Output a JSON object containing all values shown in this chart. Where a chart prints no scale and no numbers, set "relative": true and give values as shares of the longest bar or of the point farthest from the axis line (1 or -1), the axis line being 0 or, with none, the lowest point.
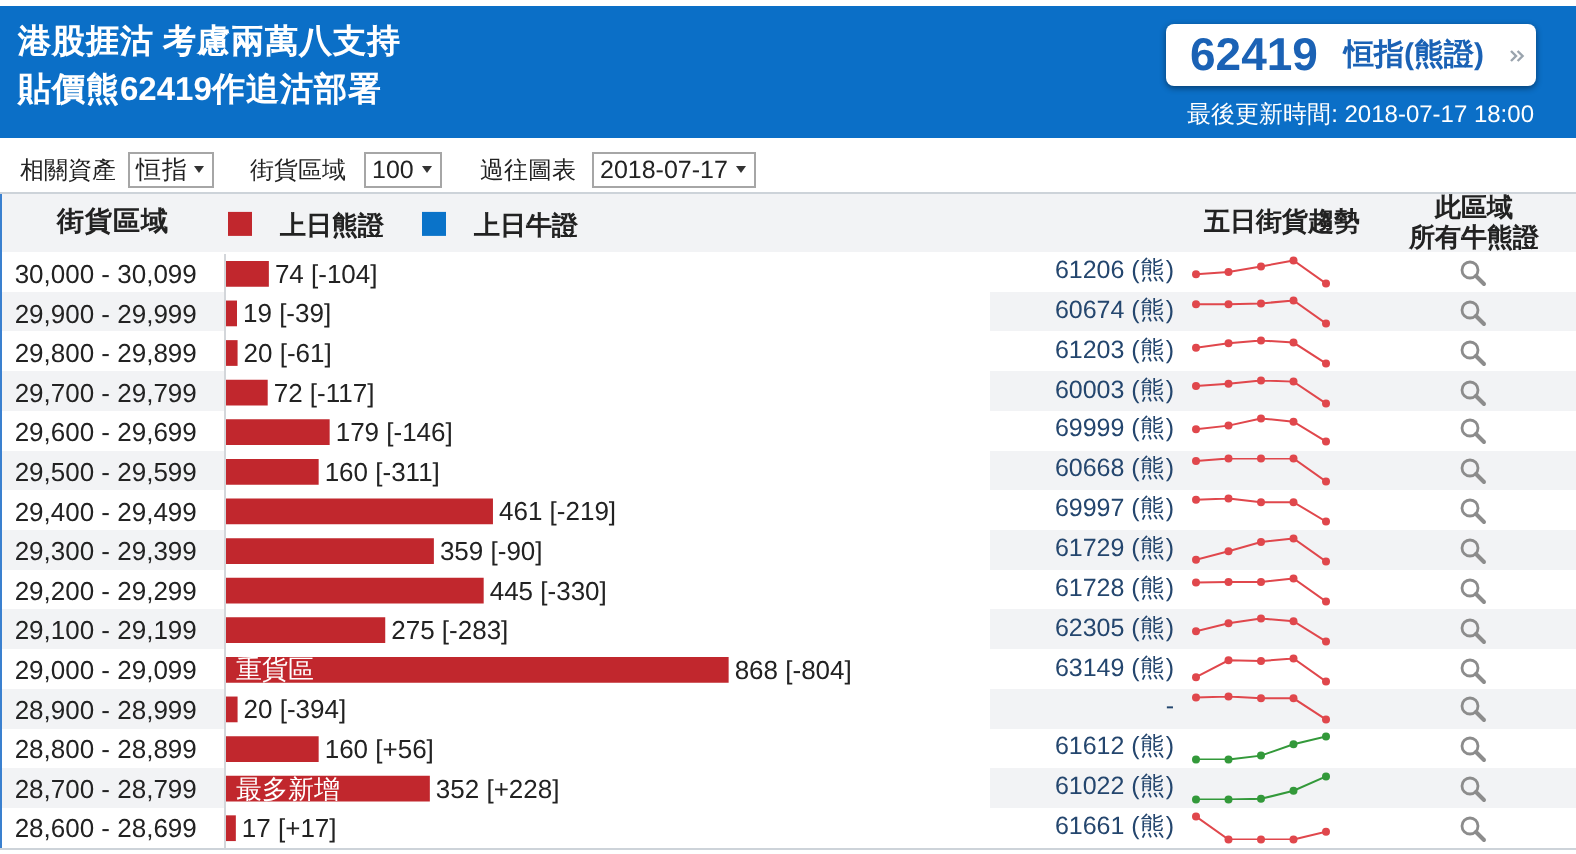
{
  "chart_data": [
    {
      "type": "bar",
      "orientation": "horizontal",
      "title": "港股捱沽 考慮兩萬八支持",
      "subtitle": "貼價熊62419作追沽部署",
      "ylabel": "街貨區域",
      "categories": [
        "30,000 - 30,099",
        "29,900 - 29,999",
        "29,800 - 29,899",
        "29,700 - 29,799",
        "29,600 - 29,699",
        "29,500 - 29,599",
        "29,400 - 29,499",
        "29,300 - 29,399",
        "29,200 - 29,299",
        "29,100 - 29,199",
        "29,000 - 29,099",
        "28,900 - 28,999",
        "28,800 - 28,899",
        "28,700 - 28,799",
        "28,600 - 28,699"
      ],
      "series": [
        {
          "name": "上日熊證",
          "color": "#c1272d",
          "values": [
            74,
            19,
            20,
            72,
            179,
            160,
            461,
            359,
            445,
            275,
            868,
            20,
            160,
            352,
            17
          ],
          "value_labels": [
            "74 [-104]",
            "19 [-39]",
            "20 [-61]",
            "72 [-117]",
            "179 [-146]",
            "160 [-311]",
            "461 [-219]",
            "359 [-90]",
            "445 [-330]",
            "275 [-283]",
            "868 [-804]",
            "20 [-394]",
            "160 [+56]",
            "352 [+228]",
            "17 [+17]"
          ]
        },
        {
          "name": "上日牛證",
          "color": "#0a73c9",
          "values": [
            null,
            null,
            null,
            null,
            null,
            null,
            null,
            null,
            null,
            null,
            null,
            null,
            null,
            null,
            null
          ]
        }
      ],
      "legend": "top left",
      "tick_labels": "y",
      "annotations": [
        {
          "text": "重貨區",
          "x": 0,
          "y": "29,000 - 29,099"
        },
        {
          "text": "最多新增",
          "x": 0,
          "y": "28,700 - 28,799"
        },
        "62419",
        "恒指(熊證)",
        "最後更新時間: 2018-07-17 18:00",
        "相關資產",
        "恒指",
        "街貨區域",
        "100",
        "過往圖表",
        "2018-07-17",
        "五日街貨趨勢",
        "此區域",
        "所有牛熊證"
      ]
    },
    {
      "type": "other",
      "annotations": [
        "61206 (熊)",
        "60674 (熊)",
        "61203 (熊)",
        "60003 (熊)",
        "69999 (熊)",
        "60668 (熊)",
        "69997 (熊)",
        "61729 (熊)",
        "61728 (熊)",
        "62305 (熊)",
        "63149 (熊)",
        "-",
        "61612 (熊)",
        "61022 (熊)",
        "61661 (熊)"
      ]
    },
    {
      "type": "line",
      "relative": true,
      "categories": [
        null,
        null,
        null,
        null,
        null
      ],
      "marker": "circle",
      "series": [
        {
          "color": "#e0474c",
          "values": [
            0.4,
            0.5,
            0.74,
            1,
            0
          ]
        }
      ]
    },
    {
      "type": "line",
      "relative": true,
      "categories": [
        null,
        null,
        null,
        null,
        null
      ],
      "marker": "circle",
      "series": [
        {
          "color": "#e0474c",
          "values": [
            0.84,
            0.84,
            0.87,
            1,
            0
          ]
        }
      ]
    },
    {
      "type": "line",
      "relative": true,
      "categories": [
        null,
        null,
        null,
        null,
        null
      ],
      "marker": "circle",
      "series": [
        {
          "color": "#e0474c",
          "values": [
            0.68,
            0.88,
            1,
            0.91,
            0
          ]
        }
      ]
    },
    {
      "type": "line",
      "relative": true,
      "categories": [
        null,
        null,
        null,
        null,
        null
      ],
      "marker": "circle",
      "series": [
        {
          "color": "#e0474c",
          "values": [
            0.76,
            0.86,
            1,
            0.95,
            0
          ]
        }
      ]
    },
    {
      "type": "line",
      "relative": true,
      "categories": [
        null,
        null,
        null,
        null,
        null
      ],
      "marker": "circle",
      "series": [
        {
          "color": "#e0474c",
          "values": [
            0.53,
            0.69,
            1,
            0.86,
            0
          ]
        }
      ]
    },
    {
      "type": "line",
      "relative": true,
      "categories": [
        null,
        null,
        null,
        null,
        null
      ],
      "marker": "circle",
      "series": [
        {
          "color": "#e0474c",
          "values": [
            0.89,
            1,
            1,
            1,
            0
          ]
        }
      ]
    },
    {
      "type": "line",
      "relative": true,
      "categories": [
        null,
        null,
        null,
        null,
        null
      ],
      "marker": "circle",
      "series": [
        {
          "color": "#e0474c",
          "values": [
            0.94,
            1,
            0.84,
            0.84,
            0
          ]
        }
      ]
    },
    {
      "type": "line",
      "relative": true,
      "categories": [
        null,
        null,
        null,
        null,
        null
      ],
      "marker": "circle",
      "series": [
        {
          "color": "#e0474c",
          "values": [
            0.08,
            0.45,
            0.85,
            1,
            0
          ]
        }
      ]
    },
    {
      "type": "line",
      "relative": true,
      "categories": [
        null,
        null,
        null,
        null,
        null
      ],
      "marker": "circle",
      "series": [
        {
          "color": "#e0474c",
          "values": [
            0.82,
            0.85,
            0.85,
            1,
            0
          ]
        }
      ]
    },
    {
      "type": "line",
      "relative": true,
      "categories": [
        null,
        null,
        null,
        null,
        null
      ],
      "marker": "circle",
      "series": [
        {
          "color": "#e0474c",
          "values": [
            0.45,
            0.79,
            1,
            0.88,
            0
          ]
        }
      ]
    },
    {
      "type": "line",
      "relative": true,
      "categories": [
        null,
        null,
        null,
        null,
        null
      ],
      "marker": "circle",
      "series": [
        {
          "color": "#e0474c",
          "values": [
            0.19,
            0.92,
            0.89,
            1,
            0
          ]
        }
      ]
    },
    {
      "type": "line",
      "relative": true,
      "categories": [
        null,
        null,
        null,
        null,
        null
      ],
      "marker": "circle",
      "series": [
        {
          "color": "#e0474c",
          "values": [
            0.95,
            1,
            0.92,
            0.92,
            0
          ]
        }
      ]
    },
    {
      "type": "line",
      "relative": true,
      "categories": [
        null,
        null,
        null,
        null,
        null
      ],
      "marker": "circle",
      "series": [
        {
          "color": "#33993a",
          "values": [
            0,
            0,
            0.17,
            0.66,
            1
          ]
        }
      ]
    },
    {
      "type": "line",
      "relative": true,
      "categories": [
        null,
        null,
        null,
        null,
        null
      ],
      "marker": "circle",
      "series": [
        {
          "color": "#33993a",
          "values": [
            0,
            0,
            0.03,
            0.38,
            1
          ]
        }
      ]
    },
    {
      "type": "line",
      "relative": true,
      "categories": [
        null,
        null,
        null,
        null,
        null
      ],
      "marker": "circle",
      "series": [
        {
          "color": "#e0474c",
          "values": [
            1,
            0,
            0,
            0,
            0.34
          ]
        }
      ]
    }
  ]
}
